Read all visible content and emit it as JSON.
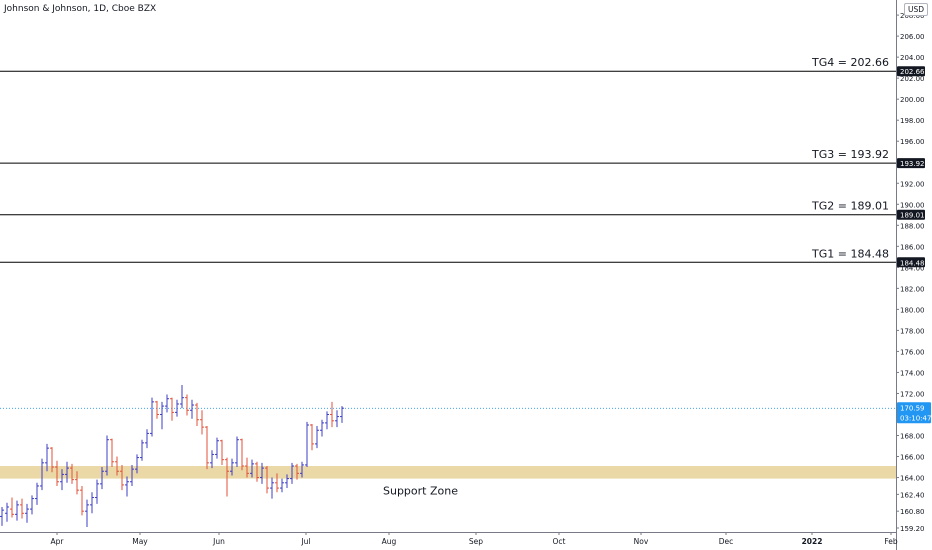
{
  "header": {
    "title": "Johnson & Johnson, 1D, Cboe BZX",
    "currency": "USD"
  },
  "colors": {
    "up": "#3d3dc4",
    "down": "#e0523a",
    "support_fill": "#e8d49c",
    "price_line": "#2196f3",
    "level_line": "#000000",
    "label_bg": "#131722"
  },
  "chart_data": {
    "type": "ohlc",
    "ylim": [
      159.2,
      208.2
    ],
    "y_ticks": [
      159.2,
      160.8,
      162.4,
      164.0,
      166.0,
      168.0,
      170.0,
      172.0,
      174.0,
      176.0,
      178.0,
      180.0,
      182.0,
      184.0,
      186.0,
      188.0,
      190.0,
      192.0,
      194.0,
      196.0,
      198.0,
      200.0,
      202.0,
      204.0,
      206.0,
      208.0
    ],
    "y_tick_labels": [
      "159.20",
      "160.80",
      "162.40",
      "164.00",
      "166.00",
      "168.00",
      "170.00",
      "172.00",
      "174.00",
      "176.00",
      "178.00",
      "180.00",
      "182.00",
      "184.00",
      "186.00",
      "188.00",
      "190.00",
      "192.00",
      "194.00",
      "196.00",
      "198.00",
      "200.00",
      "202.00",
      "204.00",
      "206.00",
      "208.00"
    ],
    "x_tick_labels": [
      "Apr",
      "May",
      "Jun",
      "Jul",
      "Aug",
      "Sep",
      "Oct",
      "Nov",
      "Dec",
      "2022",
      "Feb"
    ],
    "levels": [
      {
        "name": "TG4",
        "value": 202.66,
        "label": "TG4 = 202.66",
        "tag": "202.66"
      },
      {
        "name": "TG3",
        "value": 193.92,
        "label": "TG3 = 193.92",
        "tag": "193.92"
      },
      {
        "name": "TG2",
        "value": 189.01,
        "label": "TG2 = 189.01",
        "tag": "189.01"
      },
      {
        "name": "TG1",
        "value": 184.48,
        "label": "TG1 = 184.48",
        "tag": "184.48"
      }
    ],
    "support_zone": {
      "low": 163.9,
      "high": 165.1,
      "label": "Support Zone"
    },
    "current_price": {
      "value": 170.59,
      "label": "170.59",
      "countdown": "03:10:47"
    },
    "bars": [
      {
        "o": 160.3,
        "h": 161.2,
        "l": 159.4,
        "c": 160.9
      },
      {
        "o": 160.6,
        "h": 161.6,
        "l": 159.8,
        "c": 161.2
      },
      {
        "o": 161.0,
        "h": 162.1,
        "l": 160.2,
        "c": 160.5
      },
      {
        "o": 160.5,
        "h": 161.8,
        "l": 159.9,
        "c": 161.4
      },
      {
        "o": 161.4,
        "h": 162.0,
        "l": 160.1,
        "c": 160.6
      },
      {
        "o": 160.6,
        "h": 161.5,
        "l": 159.7,
        "c": 161.0
      },
      {
        "o": 161.0,
        "h": 162.3,
        "l": 160.5,
        "c": 162.0
      },
      {
        "o": 162.0,
        "h": 163.5,
        "l": 161.4,
        "c": 163.2
      },
      {
        "o": 163.2,
        "h": 165.8,
        "l": 162.8,
        "c": 165.4
      },
      {
        "o": 165.4,
        "h": 167.2,
        "l": 164.6,
        "c": 166.8
      },
      {
        "o": 166.8,
        "h": 166.9,
        "l": 164.5,
        "c": 165.0
      },
      {
        "o": 165.0,
        "h": 165.6,
        "l": 163.2,
        "c": 163.6
      },
      {
        "o": 163.6,
        "h": 164.8,
        "l": 162.8,
        "c": 164.3
      },
      {
        "o": 164.3,
        "h": 165.5,
        "l": 163.5,
        "c": 164.9
      },
      {
        "o": 164.9,
        "h": 165.3,
        "l": 163.4,
        "c": 163.8
      },
      {
        "o": 163.8,
        "h": 164.6,
        "l": 162.4,
        "c": 162.8
      },
      {
        "o": 162.8,
        "h": 163.2,
        "l": 160.4,
        "c": 160.8
      },
      {
        "o": 160.8,
        "h": 161.9,
        "l": 159.3,
        "c": 161.4
      },
      {
        "o": 161.4,
        "h": 162.6,
        "l": 160.6,
        "c": 162.1
      },
      {
        "o": 162.1,
        "h": 163.8,
        "l": 161.5,
        "c": 163.4
      },
      {
        "o": 163.4,
        "h": 165.0,
        "l": 162.9,
        "c": 164.6
      },
      {
        "o": 164.6,
        "h": 168.0,
        "l": 164.2,
        "c": 167.6
      },
      {
        "o": 167.6,
        "h": 167.7,
        "l": 165.0,
        "c": 165.5
      },
      {
        "o": 165.5,
        "h": 166.0,
        "l": 164.2,
        "c": 164.6
      },
      {
        "o": 164.6,
        "h": 165.2,
        "l": 162.8,
        "c": 163.3
      },
      {
        "o": 163.3,
        "h": 164.1,
        "l": 162.2,
        "c": 163.6
      },
      {
        "o": 163.6,
        "h": 165.2,
        "l": 163.2,
        "c": 164.8
      },
      {
        "o": 164.8,
        "h": 166.2,
        "l": 164.4,
        "c": 165.9
      },
      {
        "o": 165.9,
        "h": 167.6,
        "l": 165.6,
        "c": 167.3
      },
      {
        "o": 167.3,
        "h": 168.6,
        "l": 166.8,
        "c": 168.2
      },
      {
        "o": 168.2,
        "h": 171.6,
        "l": 167.9,
        "c": 171.2
      },
      {
        "o": 171.2,
        "h": 171.3,
        "l": 169.6,
        "c": 170.0
      },
      {
        "o": 170.0,
        "h": 171.2,
        "l": 168.6,
        "c": 170.8
      },
      {
        "o": 170.8,
        "h": 171.9,
        "l": 170.2,
        "c": 171.5
      },
      {
        "o": 171.5,
        "h": 171.6,
        "l": 169.4,
        "c": 170.2
      },
      {
        "o": 170.2,
        "h": 171.4,
        "l": 169.8,
        "c": 171.0
      },
      {
        "o": 171.0,
        "h": 172.8,
        "l": 170.6,
        "c": 171.6
      },
      {
        "o": 171.6,
        "h": 171.9,
        "l": 169.9,
        "c": 170.4
      },
      {
        "o": 170.4,
        "h": 171.4,
        "l": 169.6,
        "c": 170.9
      },
      {
        "o": 170.9,
        "h": 171.1,
        "l": 168.9,
        "c": 169.5
      },
      {
        "o": 169.5,
        "h": 170.4,
        "l": 168.1,
        "c": 168.8
      },
      {
        "o": 168.8,
        "h": 168.9,
        "l": 164.8,
        "c": 165.4
      },
      {
        "o": 165.4,
        "h": 166.6,
        "l": 164.9,
        "c": 166.2
      },
      {
        "o": 166.2,
        "h": 167.8,
        "l": 165.8,
        "c": 167.5
      },
      {
        "o": 167.5,
        "h": 167.6,
        "l": 165.2,
        "c": 165.7
      },
      {
        "o": 165.7,
        "h": 165.9,
        "l": 162.2,
        "c": 164.6
      },
      {
        "o": 164.6,
        "h": 165.8,
        "l": 164.2,
        "c": 165.4
      },
      {
        "o": 165.4,
        "h": 167.9,
        "l": 165.0,
        "c": 167.6
      },
      {
        "o": 167.6,
        "h": 167.7,
        "l": 164.7,
        "c": 165.1
      },
      {
        "o": 165.1,
        "h": 165.9,
        "l": 164.0,
        "c": 164.4
      },
      {
        "o": 164.4,
        "h": 165.7,
        "l": 164.0,
        "c": 165.3
      },
      {
        "o": 165.3,
        "h": 165.5,
        "l": 163.6,
        "c": 164.0
      },
      {
        "o": 164.0,
        "h": 165.4,
        "l": 163.4,
        "c": 164.9
      },
      {
        "o": 164.9,
        "h": 165.1,
        "l": 162.5,
        "c": 163.0
      },
      {
        "o": 163.0,
        "h": 164.0,
        "l": 162.0,
        "c": 163.5
      },
      {
        "o": 163.5,
        "h": 164.4,
        "l": 162.6,
        "c": 163.0
      },
      {
        "o": 163.0,
        "h": 163.9,
        "l": 162.6,
        "c": 163.5
      },
      {
        "o": 163.5,
        "h": 164.3,
        "l": 163.0,
        "c": 163.9
      },
      {
        "o": 163.9,
        "h": 165.4,
        "l": 163.4,
        "c": 165.1
      },
      {
        "o": 165.1,
        "h": 165.3,
        "l": 163.8,
        "c": 164.4
      },
      {
        "o": 164.4,
        "h": 165.5,
        "l": 164.0,
        "c": 165.2
      },
      {
        "o": 165.2,
        "h": 169.3,
        "l": 165.0,
        "c": 169.0
      },
      {
        "o": 169.0,
        "h": 169.1,
        "l": 166.6,
        "c": 167.2
      },
      {
        "o": 167.2,
        "h": 168.9,
        "l": 166.8,
        "c": 168.5
      },
      {
        "o": 168.5,
        "h": 169.5,
        "l": 167.9,
        "c": 169.2
      },
      {
        "o": 169.2,
        "h": 170.3,
        "l": 168.6,
        "c": 170.0
      },
      {
        "o": 170.0,
        "h": 171.2,
        "l": 168.8,
        "c": 169.4
      },
      {
        "o": 169.4,
        "h": 170.4,
        "l": 168.8,
        "c": 169.8
      },
      {
        "o": 169.8,
        "h": 170.8,
        "l": 169.2,
        "c": 170.6
      }
    ]
  },
  "annotations": {
    "support_label": "Support Zone"
  }
}
